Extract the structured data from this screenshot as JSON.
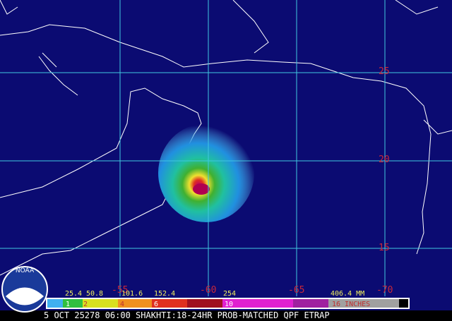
{
  "lat_labels": [
    "25",
    "20",
    "15"
  ],
  "lon_labels": [
    "-55",
    "-60",
    "-65",
    "-70"
  ],
  "colorbar": {
    "mm_labels": [
      "25.4",
      "50.8",
      "101.6",
      "152.4",
      "254",
      "406.4 MM"
    ],
    "inch_labels": [
      "1",
      "2",
      "4",
      "6",
      "10",
      "16 INCHES"
    ]
  },
  "logo": "NOAA",
  "footer": "5 OCT 25278 06:00 SHAKHTI:18-24HR PROB-MATCHED QPF ETRAP"
}
